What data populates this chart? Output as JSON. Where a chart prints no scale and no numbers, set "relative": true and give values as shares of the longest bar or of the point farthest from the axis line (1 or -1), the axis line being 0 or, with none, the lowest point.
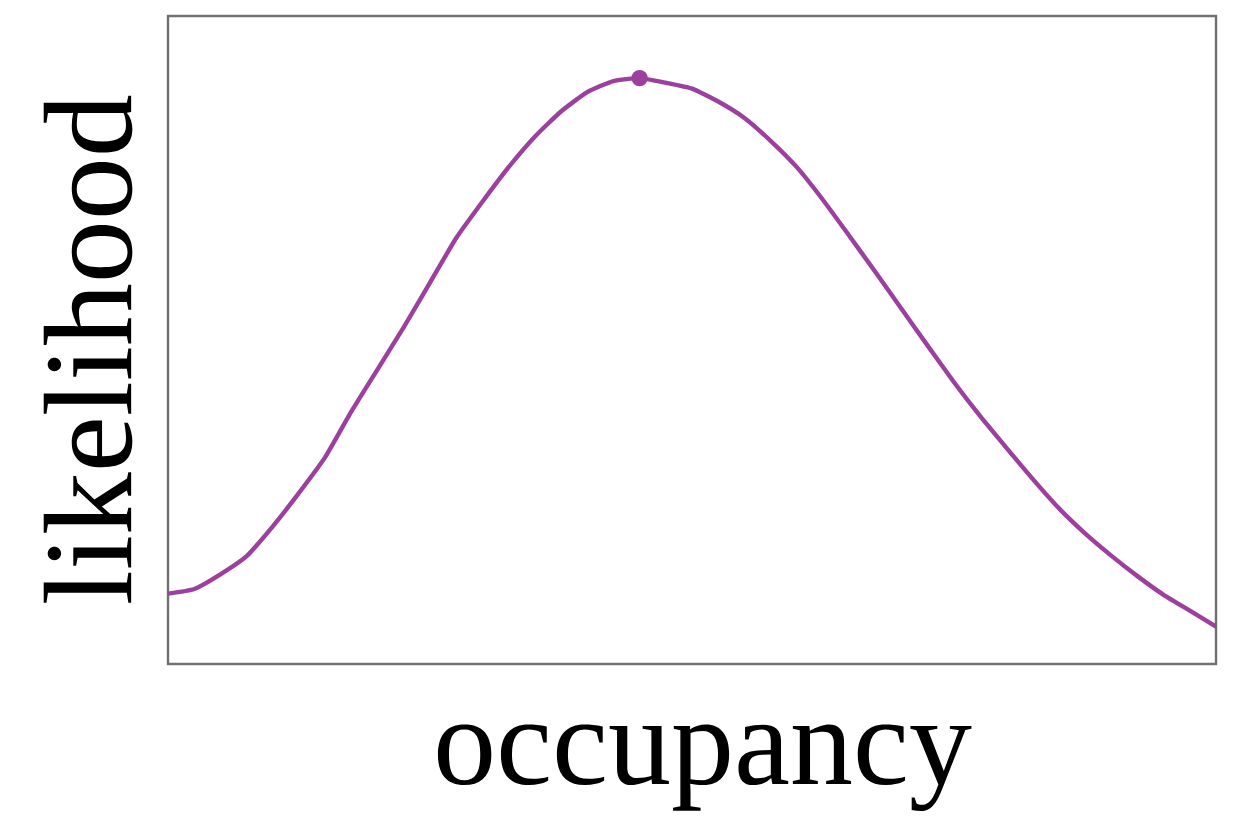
{
  "chart_data": {
    "type": "line",
    "relative": true,
    "xlabel": "occupancy",
    "ylabel": "likelihood",
    "categories": [
      null,
      null,
      null,
      null,
      null,
      null,
      null,
      null,
      null,
      null,
      null,
      null,
      null,
      null,
      null,
      null,
      null,
      null,
      null,
      null,
      null,
      null,
      null,
      null,
      null,
      null,
      null,
      null,
      null,
      null,
      null,
      null,
      null,
      null,
      null,
      null,
      null,
      null,
      null,
      null,
      null
    ],
    "series": [
      {
        "type": "line",
        "color": "#9c3f9e",
        "values": [
          0.12,
          0.128,
          0.153,
          0.184,
          0.235,
          0.292,
          0.353,
          0.431,
          0.503,
          0.575,
          0.651,
          0.727,
          0.789,
          0.848,
          0.9,
          0.943,
          0.976,
          0.995,
          1.0,
          0.992,
          0.982,
          0.96,
          0.932,
          0.893,
          0.848,
          0.792,
          0.731,
          0.669,
          0.606,
          0.543,
          0.481,
          0.423,
          0.369,
          0.316,
          0.266,
          0.223,
          0.185,
          0.15,
          0.118,
          0.091,
          0.064
        ]
      },
      {
        "type": "line",
        "color": "#9c3f9e",
        "marker": "circle",
        "values": [
          null,
          null,
          null,
          null,
          null,
          null,
          null,
          null,
          null,
          null,
          null,
          null,
          null,
          null,
          null,
          null,
          null,
          null,
          1.0,
          null,
          null,
          null,
          null,
          null,
          null,
          null,
          null,
          null,
          null,
          null,
          null,
          null,
          null,
          null,
          null,
          null,
          null,
          null,
          null,
          null,
          null
        ]
      }
    ]
  }
}
